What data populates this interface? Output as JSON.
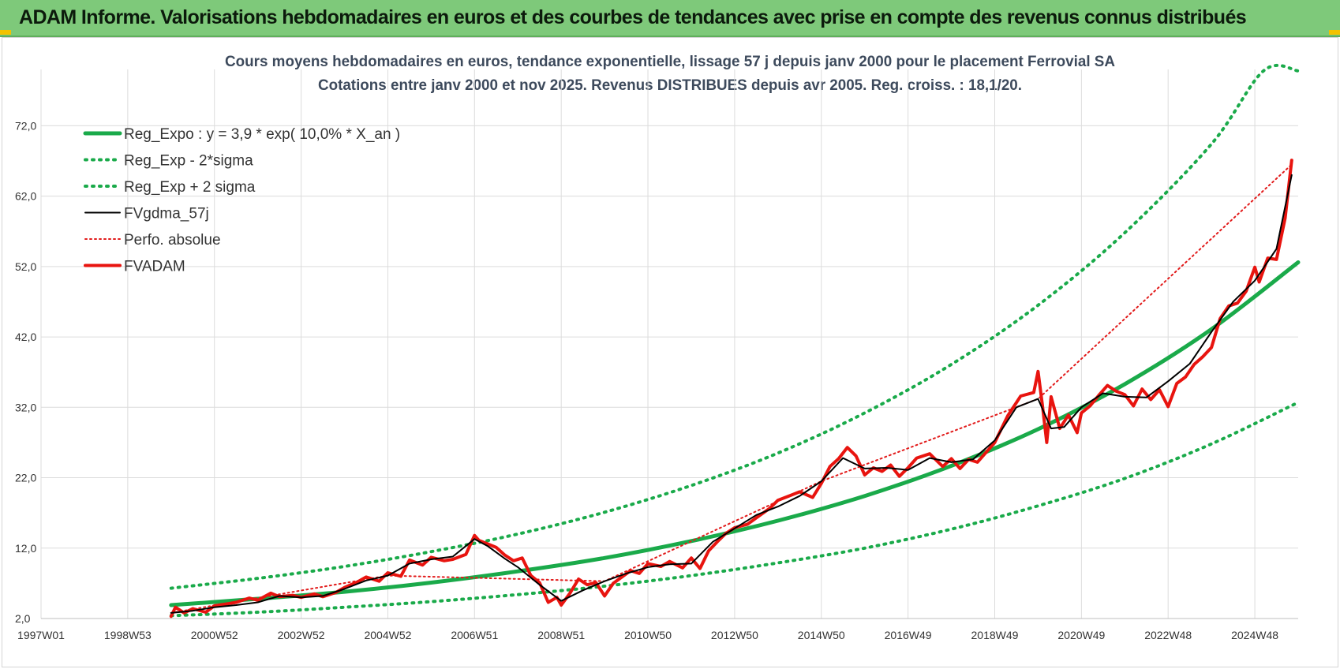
{
  "page": {
    "banner_title": "ADAM Informe. Valorisations hebdomadaires en euros et des courbes de tendances avec prise en compte des revenus connus distribués"
  },
  "colors": {
    "banner": "#7ec97a",
    "reg_expo": "#1aaa4a",
    "sigma_bands": "#1aaa4a",
    "fvgdma": "#000000",
    "perfo": "#e21b1b",
    "fvadam": "#e8140f",
    "grid": "#dcdcdc"
  },
  "chart_data": {
    "type": "line",
    "title": "Cours moyens hebdomadaires en euros, tendance exponentielle, lissage 57 j depuis janv 2000  pour le placement Ferrovial SA",
    "subtitle": "Cotations entre janv 2000 et nov 2025. Revenus DISTRIBUES depuis avr 2005.  Reg. croiss. : 18,1/20.",
    "xlabel": "",
    "ylabel": "",
    "x_range": [
      1997.0,
      2026.0
    ],
    "ylim": [
      2,
      80
    ],
    "grid": true,
    "legend_position": "top-left",
    "y_ticks": [
      "2,0",
      "12,0",
      "22,0",
      "32,0",
      "42,0",
      "52,0",
      "62,0",
      "72,0"
    ],
    "y_tick_values": [
      2,
      12,
      22,
      32,
      42,
      52,
      62,
      72
    ],
    "x_ticks": [
      "1997W01",
      "1998W53",
      "2000W52",
      "2002W52",
      "2004W52",
      "2006W51",
      "2008W51",
      "2010W50",
      "2012W50",
      "2014W50",
      "2016W49",
      "2018W49",
      "2020W49",
      "2022W48",
      "2024W48"
    ],
    "x_tick_values": [
      1997.0,
      1999.0,
      2001.0,
      2003.0,
      2005.0,
      2007.0,
      2009.0,
      2011.0,
      2013.0,
      2015.0,
      2017.0,
      2019.0,
      2021.0,
      2023.0,
      2025.0
    ],
    "legend": [
      "Reg_Expo : y = 3,9 * exp( 10,0% *  X_an )",
      "Reg_Exp - 2*sigma",
      "Reg_Exp + 2 sigma",
      "FVgdma_57j",
      "Perfo. absolue",
      "FVADAM"
    ],
    "series": [
      {
        "name": "Reg_Expo : y = 3,9 * exp( 10,0% *  X_an )",
        "style": "solid-thick",
        "x": [
          2000.0,
          2002.0,
          2004.0,
          2006.0,
          2008.0,
          2010.0,
          2012.0,
          2014.0,
          2016.0,
          2018.0,
          2020.0,
          2022.0,
          2024.0,
          2026.0
        ],
        "y": [
          3.9,
          4.8,
          5.8,
          7.1,
          8.7,
          10.6,
          13.0,
          15.9,
          19.4,
          23.7,
          28.9,
          35.3,
          43.1,
          52.6
        ]
      },
      {
        "name": "Reg_Exp - 2*sigma",
        "style": "dotted",
        "x": [
          2000.0,
          2002.0,
          2004.0,
          2006.0,
          2008.0,
          2010.0,
          2012.0,
          2014.0,
          2016.0,
          2018.0,
          2020.0,
          2022.0,
          2024.0,
          2026.0
        ],
        "y": [
          2.4,
          2.9,
          3.6,
          4.4,
          5.4,
          6.6,
          8.1,
          9.9,
          12.0,
          14.7,
          18.0,
          21.9,
          26.8,
          32.7
        ]
      },
      {
        "name": "Reg_Exp + 2 sigma",
        "style": "dotted",
        "x": [
          2000.0,
          2002.0,
          2004.0,
          2006.0,
          2008.0,
          2010.0,
          2012.0,
          2014.0,
          2016.0,
          2018.0,
          2020.0,
          2022.0,
          2024.0,
          2025.2,
          2026.0
        ],
        "y": [
          6.3,
          7.7,
          9.4,
          11.5,
          14.0,
          17.1,
          20.9,
          25.5,
          31.2,
          38.1,
          46.5,
          56.8,
          69.4,
          79.8,
          79.8
        ]
      },
      {
        "name": "FVgdma_57j",
        "style": "solid-thin",
        "x": [
          2000.0,
          2000.5,
          2001.0,
          2001.5,
          2002.0,
          2002.5,
          2003.0,
          2003.5,
          2004.0,
          2004.5,
          2005.0,
          2005.5,
          2006.0,
          2006.5,
          2007.0,
          2007.3,
          2007.7,
          2008.0,
          2008.5,
          2009.0,
          2009.5,
          2010.0,
          2010.5,
          2011.0,
          2011.5,
          2012.0,
          2012.5,
          2013.0,
          2013.5,
          2014.0,
          2014.5,
          2015.0,
          2015.5,
          2016.0,
          2016.5,
          2017.0,
          2017.5,
          2018.0,
          2018.5,
          2019.0,
          2019.5,
          2020.0,
          2020.3,
          2020.6,
          2021.0,
          2021.5,
          2022.0,
          2022.5,
          2023.0,
          2023.5,
          2024.0,
          2024.5,
          2025.0,
          2025.5,
          2025.85
        ],
        "y": [
          2.8,
          3.1,
          3.6,
          3.9,
          4.3,
          5.2,
          5.0,
          5.2,
          6.2,
          7.4,
          8.1,
          9.8,
          10.4,
          10.8,
          13.3,
          12.3,
          10.5,
          9.3,
          6.8,
          4.5,
          6.0,
          7.3,
          8.4,
          9.3,
          9.7,
          9.8,
          12.9,
          14.8,
          16.7,
          17.9,
          19.4,
          21.5,
          24.8,
          23.3,
          23.4,
          23.1,
          24.8,
          24.2,
          24.6,
          27.3,
          32.0,
          33.2,
          29.0,
          29.2,
          32.0,
          34.0,
          33.5,
          33.4,
          35.7,
          38.2,
          42.7,
          47.0,
          50.0,
          54.5,
          65.0
        ]
      },
      {
        "name": "Perfo. absolue",
        "style": "dotted",
        "x": [
          2000.0,
          2005.0,
          2010.0,
          2015.0,
          2020.0,
          2025.85
        ],
        "y": [
          2.8,
          8.1,
          7.3,
          21.5,
          33.2,
          66.5
        ]
      },
      {
        "name": "FVADAM",
        "style": "solid-thick",
        "x": [
          2000.0,
          2000.1,
          2000.3,
          2000.5,
          2000.8,
          2001.0,
          2001.3,
          2001.5,
          2001.8,
          2002.0,
          2002.3,
          2002.5,
          2002.8,
          2003.0,
          2003.3,
          2003.5,
          2003.8,
          2004.0,
          2004.3,
          2004.5,
          2004.8,
          2005.0,
          2005.3,
          2005.5,
          2005.8,
          2006.0,
          2006.3,
          2006.5,
          2006.8,
          2007.0,
          2007.1,
          2007.3,
          2007.5,
          2007.7,
          2007.9,
          2008.1,
          2008.3,
          2008.5,
          2008.7,
          2008.9,
          2009.0,
          2009.2,
          2009.4,
          2009.6,
          2009.8,
          2010.0,
          2010.2,
          2010.4,
          2010.6,
          2010.8,
          2011.0,
          2011.3,
          2011.5,
          2011.8,
          2012.0,
          2012.2,
          2012.4,
          2012.6,
          2012.8,
          2013.0,
          2013.3,
          2013.5,
          2013.8,
          2014.0,
          2014.3,
          2014.5,
          2014.8,
          2015.0,
          2015.2,
          2015.4,
          2015.6,
          2015.8,
          2016.0,
          2016.2,
          2016.4,
          2016.6,
          2016.8,
          2017.0,
          2017.2,
          2017.5,
          2017.8,
          2018.0,
          2018.2,
          2018.4,
          2018.6,
          2018.8,
          2019.0,
          2019.3,
          2019.6,
          2019.9,
          2020.0,
          2020.1,
          2020.2,
          2020.3,
          2020.5,
          2020.7,
          2020.9,
          2021.0,
          2021.2,
          2021.4,
          2021.6,
          2021.8,
          2022.0,
          2022.2,
          2022.4,
          2022.6,
          2022.8,
          2023.0,
          2023.2,
          2023.4,
          2023.6,
          2023.8,
          2024.0,
          2024.2,
          2024.4,
          2024.6,
          2024.8,
          2025.0,
          2025.1,
          2025.3,
          2025.5,
          2025.7,
          2025.85
        ],
        "y": [
          2.3,
          3.6,
          2.8,
          3.4,
          2.9,
          3.8,
          4.1,
          4.3,
          4.9,
          4.6,
          5.6,
          5.1,
          5.3,
          5.0,
          5.5,
          5.1,
          5.7,
          6.4,
          7.2,
          7.9,
          7.3,
          8.5,
          8.0,
          10.3,
          9.6,
          10.7,
          10.2,
          10.4,
          11.1,
          13.8,
          13.1,
          12.6,
          12.1,
          11.0,
          10.2,
          10.6,
          8.1,
          7.1,
          4.3,
          5.0,
          3.9,
          5.6,
          7.6,
          6.8,
          7.1,
          5.2,
          7.0,
          7.9,
          8.8,
          8.4,
          9.8,
          9.4,
          10.1,
          9.2,
          10.6,
          9.1,
          11.6,
          12.9,
          14.1,
          14.9,
          15.4,
          16.3,
          17.6,
          18.8,
          19.5,
          20.0,
          19.2,
          21.2,
          23.6,
          24.7,
          26.3,
          25.1,
          22.4,
          23.4,
          22.9,
          23.8,
          22.2,
          23.4,
          24.8,
          25.4,
          23.6,
          24.7,
          23.3,
          24.6,
          24.2,
          25.6,
          27.0,
          30.8,
          33.6,
          34.1,
          37.1,
          32.3,
          27.0,
          33.5,
          29.0,
          30.9,
          28.4,
          31.2,
          32.2,
          33.7,
          35.1,
          34.3,
          33.8,
          32.2,
          34.6,
          33.1,
          34.5,
          32.1,
          35.4,
          36.3,
          38.1,
          39.2,
          40.5,
          44.6,
          46.4,
          46.8,
          48.5,
          51.9,
          49.8,
          53.2,
          53.0,
          58.9,
          67.1
        ]
      }
    ]
  }
}
